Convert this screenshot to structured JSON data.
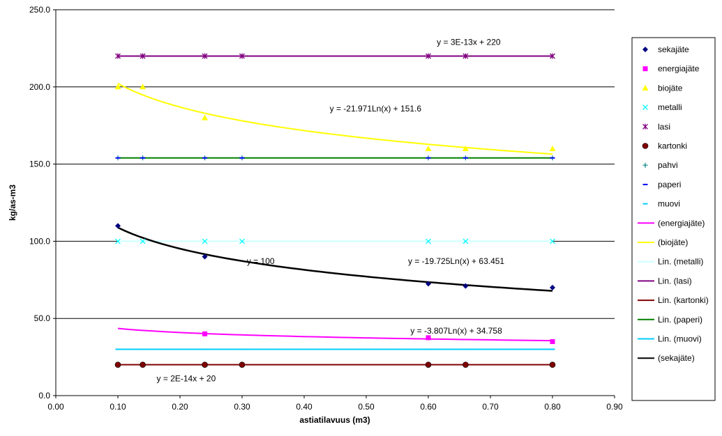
{
  "chart_data": {
    "type": "scatter",
    "xlabel": "astiatilavuus (m3)",
    "ylabel": "kg/as-m3",
    "xlim": [
      0.0,
      0.9
    ],
    "ylim": [
      0.0,
      250.0
    ],
    "x_ticks": [
      "0.00",
      "0.10",
      "0.20",
      "0.30",
      "0.40",
      "0.50",
      "0.60",
      "0.70",
      "0.80",
      "0.90"
    ],
    "y_ticks": [
      "0.0",
      "50.0",
      "100.0",
      "150.0",
      "200.0",
      "250.0"
    ],
    "grid": "horizontal",
    "legend_position": "right",
    "series": [
      {
        "name": "sekajäte",
        "marker": "diamond",
        "color": "#000080",
        "x": [
          0.1,
          0.24,
          0.6,
          0.66,
          0.8
        ],
        "y": [
          110,
          90,
          72.5,
          71,
          70
        ]
      },
      {
        "name": "energiajäte",
        "marker": "square",
        "color": "#ff00ff",
        "x": [
          0.24,
          0.6,
          0.8
        ],
        "y": [
          40,
          37.5,
          35
        ]
      },
      {
        "name": "biojäte",
        "marker": "triangle",
        "color": "#ffff00",
        "x": [
          0.1,
          0.14,
          0.24,
          0.6,
          0.66,
          0.8
        ],
        "y": [
          200,
          200,
          180,
          160,
          160,
          160
        ]
      },
      {
        "name": "metalli",
        "marker": "x",
        "color": "#00ffff",
        "x": [
          0.1,
          0.14,
          0.24,
          0.3,
          0.6,
          0.66,
          0.8
        ],
        "y": [
          100,
          100,
          100,
          100,
          100,
          100,
          100
        ]
      },
      {
        "name": "lasi",
        "marker": "star",
        "color": "#800080",
        "x": [
          0.1,
          0.14,
          0.24,
          0.3,
          0.6,
          0.66,
          0.8
        ],
        "y": [
          220,
          220,
          220,
          220,
          220,
          220,
          220
        ]
      },
      {
        "name": "kartonki",
        "marker": "circle",
        "color": "#800000",
        "x": [
          0.1,
          0.14,
          0.24,
          0.3,
          0.6,
          0.66,
          0.8
        ],
        "y": [
          20,
          20,
          20,
          20,
          20,
          20,
          20
        ]
      },
      {
        "name": "pahvi",
        "marker": "plus",
        "color": "#008080",
        "x": [
          0.1,
          0.14,
          0.24,
          0.3,
          0.6,
          0.66,
          0.8
        ],
        "y": [
          154,
          154,
          154,
          154,
          154,
          154,
          154
        ]
      },
      {
        "name": "paperi",
        "marker": "dash",
        "color": "#0000ff",
        "x": [
          0.1,
          0.14,
          0.24,
          0.3,
          0.6,
          0.66,
          0.8
        ],
        "y": [
          154,
          154,
          154,
          154,
          154,
          154,
          154
        ]
      },
      {
        "name": "muovi",
        "marker": "dash",
        "color": "#00ccff",
        "x": [
          0.1,
          0.14,
          0.24,
          0.3,
          0.6,
          0.66,
          0.8
        ],
        "y": [
          30,
          30,
          30,
          30,
          30,
          30,
          30
        ]
      }
    ],
    "trendlines": [
      {
        "name": " (energiajäte)",
        "kind": "log",
        "a": -3.807,
        "b": 34.758,
        "color": "#ff00ff",
        "width": 2
      },
      {
        "name": " (biojäte)",
        "kind": "log",
        "a": -21.971,
        "b": 151.6,
        "color": "#ffff00",
        "width": 2
      },
      {
        "name": "Lin. (metalli)",
        "kind": "linear",
        "m": 0,
        "c": 100,
        "color": "#ccffff",
        "width": 2
      },
      {
        "name": "Lin. (lasi)",
        "kind": "linear",
        "m": 0,
        "c": 220,
        "color": "#800080",
        "width": 2
      },
      {
        "name": "Lin. (kartonki)",
        "kind": "linear",
        "m": 0,
        "c": 20,
        "color": "#800000",
        "width": 2
      },
      {
        "name": "Lin. (paperi)",
        "kind": "linear",
        "m": 0,
        "c": 154,
        "color": "#008000",
        "width": 2
      },
      {
        "name": "Lin. (muovi)",
        "kind": "linear",
        "m": 0,
        "c": 30,
        "color": "#00ccff",
        "width": 2
      },
      {
        "name": " (sekajäte)",
        "kind": "log",
        "a": -19.725,
        "b": 63.451,
        "color": "#000000",
        "width": 2.5
      }
    ],
    "trend_range": [
      0.1,
      0.8
    ],
    "annotations": [
      {
        "text": "y = 3E-13x + 220",
        "x": 0.665,
        "y": 229
      },
      {
        "text": "y = -21.971Ln(x) + 151.6",
        "x": 0.515,
        "y": 186
      },
      {
        "text": "y = 100",
        "x": 0.33,
        "y": 87
      },
      {
        "text": "y = -19.725Ln(x) + 63.451",
        "x": 0.645,
        "y": 87
      },
      {
        "text": "y = -3.807Ln(x) + 34.758",
        "x": 0.645,
        "y": 42
      },
      {
        "text": "y = 2E-14x + 20",
        "x": 0.21,
        "y": 11
      }
    ]
  }
}
